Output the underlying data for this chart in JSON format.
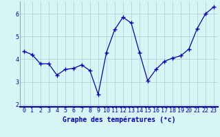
{
  "x": [
    0,
    1,
    2,
    3,
    4,
    5,
    6,
    7,
    8,
    9,
    10,
    11,
    12,
    13,
    14,
    15,
    16,
    17,
    18,
    19,
    20,
    21,
    22,
    23
  ],
  "y": [
    4.35,
    4.2,
    3.8,
    3.8,
    3.3,
    3.55,
    3.6,
    3.75,
    3.5,
    2.45,
    4.3,
    5.3,
    5.85,
    5.6,
    4.3,
    3.05,
    3.55,
    3.9,
    4.05,
    4.15,
    4.45,
    5.35,
    6.0,
    6.3
  ],
  "line_color": "#0000bb",
  "marker": "+",
  "marker_size": 4,
  "bg_color": "#d8f5f5",
  "grid_color": "#aacccc",
  "xlabel": "Graphe des températures (°c)",
  "xlabel_color": "#0000bb",
  "xlabel_fontsize": 7,
  "tick_color": "#0000bb",
  "tick_fontsize": 6,
  "xlim": [
    -0.5,
    23.5
  ],
  "ylim": [
    1.9,
    6.55
  ],
  "yticks": [
    2,
    3,
    4,
    5,
    6
  ],
  "xticks": [
    0,
    1,
    2,
    3,
    4,
    5,
    6,
    7,
    8,
    9,
    10,
    11,
    12,
    13,
    14,
    15,
    16,
    17,
    18,
    19,
    20,
    21,
    22,
    23
  ],
  "border_color": "#0000bb",
  "spine_color": "#8aadad"
}
